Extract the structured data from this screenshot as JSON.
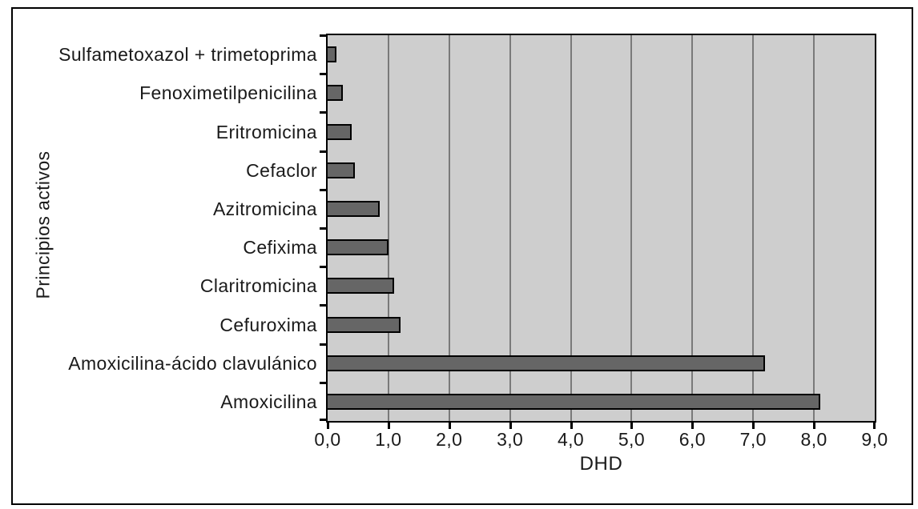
{
  "chart_data": {
    "type": "bar",
    "orientation": "horizontal",
    "xlabel": "DHD",
    "ylabel": "Principios activos",
    "categories": [
      "Sulfametoxazol + trimetoprima",
      "Fenoximetilpenicilina",
      "Eritromicina",
      "Cefaclor",
      "Azitromicina",
      "Cefixima",
      "Claritromicina",
      "Cefuroxima",
      "Amoxicilina-ácido clavulánico",
      "Amoxicilina"
    ],
    "values": [
      0.15,
      0.25,
      0.4,
      0.45,
      0.85,
      1.0,
      1.1,
      1.2,
      7.2,
      8.1
    ],
    "xlim": [
      0,
      9
    ],
    "x_tick_step": 1.0,
    "x_tick_labels": [
      "0,0",
      "1,0",
      "2,0",
      "3,0",
      "4,0",
      "5,0",
      "6,0",
      "7,0",
      "8,0",
      "9,0"
    ],
    "grid": "vertical-major",
    "legend": "none",
    "colors": {
      "bar_fill": "#666666",
      "bar_border": "#000000",
      "plot_background": "#cecece",
      "gridline": "#7a7a7a",
      "frame_border": "#000000",
      "text": "#1a1a1a",
      "page_background": "#ffffff"
    }
  }
}
